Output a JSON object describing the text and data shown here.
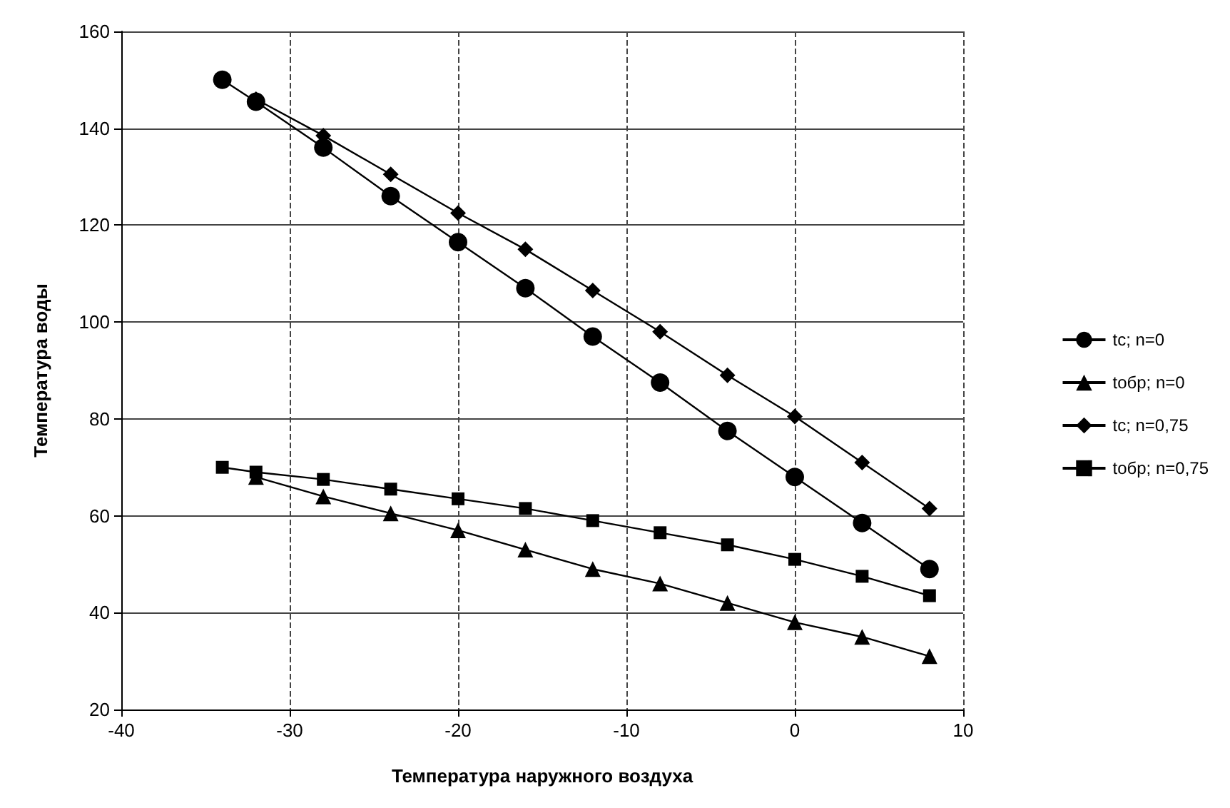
{
  "chart_data": {
    "type": "line",
    "xlabel": "Температура наружного воздуха",
    "ylabel": "Температура воды",
    "x": [
      -34,
      -32,
      -28,
      -24,
      -20,
      -16,
      -12,
      -8,
      -4,
      0,
      4,
      8
    ],
    "series": [
      {
        "name": "tc; n=0",
        "color": "#000000",
        "marker": "circle",
        "values": [
          150,
          145.5,
          136,
          126,
          116.5,
          107,
          97,
          87.5,
          77.5,
          68,
          58.5,
          49
        ]
      },
      {
        "name": "tобр; n=0",
        "color": "#000000",
        "marker": "triangle",
        "values": [
          null,
          68,
          64,
          60.5,
          57,
          53,
          49,
          46,
          42,
          38,
          35,
          31
        ]
      },
      {
        "name": "tc; n=0,75",
        "color": "#000000",
        "marker": "diamond",
        "values": [
          null,
          146,
          138.5,
          130.5,
          122.5,
          115,
          106.5,
          98,
          89,
          80.5,
          71,
          61.5
        ]
      },
      {
        "name": "tобр; n=0,75",
        "color": "#000000",
        "marker": "square",
        "values": [
          70,
          69,
          67.5,
          65.5,
          63.5,
          61.5,
          59,
          56.5,
          54,
          51,
          47.5,
          43.5
        ]
      }
    ],
    "xlim": [
      -40,
      10
    ],
    "xticks": [
      -40,
      -30,
      -20,
      -10,
      0,
      10
    ],
    "ylim": [
      20,
      160
    ],
    "yticks": [
      20,
      40,
      60,
      80,
      100,
      120,
      140,
      160
    ],
    "grid": true,
    "legend": "right",
    "line_style": "solid"
  }
}
